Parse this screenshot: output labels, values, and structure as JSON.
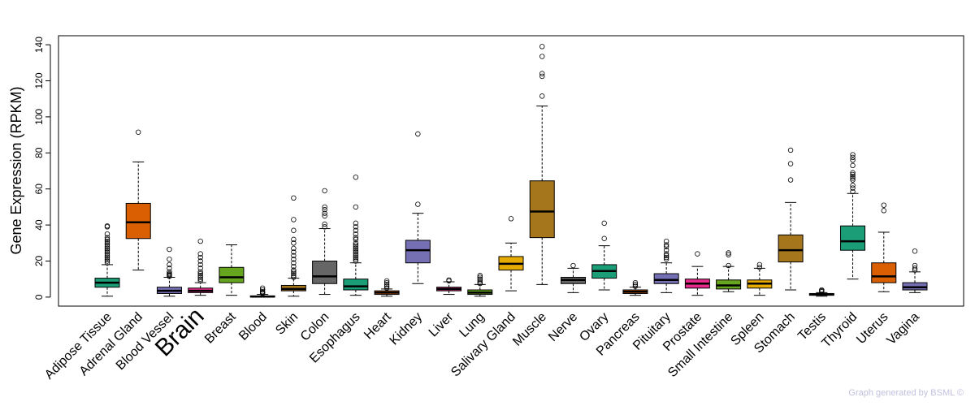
{
  "chart_data": {
    "type": "boxplot",
    "ylabel": "Gene Expression (RPKM)",
    "ylim": [
      -5,
      145
    ],
    "yticks": [
      0,
      20,
      40,
      60,
      80,
      100,
      120,
      140
    ],
    "highlight": {
      "category": "Brain",
      "color": "#FF0000"
    },
    "categories": [
      "Adipose Tissue",
      "Adrenal Gland",
      "Blood Vessel",
      "Brain",
      "Breast",
      "Blood",
      "Skin",
      "Colon",
      "Esophagus",
      "Heart",
      "Kidney",
      "Liver",
      "Lung",
      "Salivary Gland",
      "Muscle",
      "Nerve",
      "Ovary",
      "Pancreas",
      "Pituitary",
      "Prostate",
      "Small Intestine",
      "Spleen",
      "Stomach",
      "Testis",
      "Thyroid",
      "Uterus",
      "Vagina"
    ],
    "colors": [
      "#1B9E77",
      "#D95F02",
      "#7570B3",
      "#E7298A",
      "#66A61E",
      "#E6AB02",
      "#A6761D",
      "#666666",
      "#1B9E77",
      "#D95F02",
      "#7570B3",
      "#E7298A",
      "#66A61E",
      "#E6AB02",
      "#A6761D",
      "#666666",
      "#1B9E77",
      "#D95F02",
      "#7570B3",
      "#E7298A",
      "#66A61E",
      "#E6AB02",
      "#A6761D",
      "#666666",
      "#1B9E77",
      "#D95F02",
      "#7570B3"
    ],
    "boxes": [
      {
        "whisker_low": 0.5,
        "q1": 5.5,
        "median": 8,
        "q3": 10.5,
        "whisker_high": 18,
        "outliers": [
          19,
          20,
          21,
          22,
          23,
          24,
          25,
          26,
          27,
          28,
          29,
          30,
          31,
          32,
          33,
          35,
          39,
          39.5
        ]
      },
      {
        "whisker_low": 15,
        "q1": 32.5,
        "median": 41.5,
        "q3": 52,
        "whisker_high": 75,
        "outliers": [
          91.5
        ]
      },
      {
        "whisker_low": 0.5,
        "q1": 2,
        "median": 3.5,
        "q3": 5.5,
        "whisker_high": 11,
        "outliers": [
          11.5,
          12,
          12.5,
          13,
          14,
          16,
          18,
          21,
          26.5
        ]
      },
      {
        "whisker_low": 1,
        "q1": 2.5,
        "median": 3.5,
        "q3": 5,
        "whisker_high": 8,
        "outliers": [
          9,
          10,
          11,
          12,
          13,
          14,
          16,
          18,
          20,
          22,
          24,
          31
        ]
      },
      {
        "whisker_low": 1,
        "q1": 8,
        "median": 11,
        "q3": 16.5,
        "whisker_high": 29,
        "outliers": []
      },
      {
        "whisker_low": 0,
        "q1": 0.1,
        "median": 0.3,
        "q3": 0.7,
        "whisker_high": 1.5,
        "outliers": [
          2,
          2.5,
          3,
          4,
          5
        ]
      },
      {
        "whisker_low": 0.5,
        "q1": 3.5,
        "median": 4.5,
        "q3": 6.5,
        "whisker_high": 10.5,
        "outliers": [
          11,
          12,
          13,
          14,
          15,
          17,
          19,
          21,
          23,
          25,
          27,
          30,
          32,
          37,
          43,
          55
        ]
      },
      {
        "whisker_low": 1.5,
        "q1": 7.5,
        "median": 11.5,
        "q3": 20,
        "whisker_high": 38,
        "outliers": [
          39,
          40.5,
          45,
          46.5,
          48.5,
          50,
          59
        ]
      },
      {
        "whisker_low": 1,
        "q1": 4,
        "median": 6,
        "q3": 10,
        "whisker_high": 19,
        "outliers": [
          20,
          21,
          22,
          23,
          24,
          25,
          26,
          27,
          28,
          29,
          30,
          32,
          33,
          35,
          37,
          39,
          41,
          50,
          66.5
        ]
      },
      {
        "whisker_low": 0.5,
        "q1": 1.5,
        "median": 2.5,
        "q3": 3.5,
        "whisker_high": 4.5,
        "outliers": [
          5,
          6,
          7,
          8,
          9
        ]
      },
      {
        "whisker_low": 7.5,
        "q1": 19,
        "median": 26,
        "q3": 31.5,
        "whisker_high": 46.5,
        "outliers": [
          51.5,
          90.5
        ]
      },
      {
        "whisker_low": 1.5,
        "q1": 3.5,
        "median": 4.5,
        "q3": 5.5,
        "whisker_high": 8.5,
        "outliers": [
          9,
          9.5
        ]
      },
      {
        "whisker_low": 0.5,
        "q1": 1.5,
        "median": 2.5,
        "q3": 4,
        "whisker_high": 7,
        "outliers": [
          7.5,
          8,
          9,
          10,
          11,
          12
        ]
      },
      {
        "whisker_low": 3.5,
        "q1": 15,
        "median": 18.5,
        "q3": 22.5,
        "whisker_high": 30,
        "outliers": [
          43.5
        ]
      },
      {
        "whisker_low": 7,
        "q1": 33,
        "median": 47.5,
        "q3": 64.5,
        "whisker_high": 106,
        "outliers": [
          111.5,
          122.5,
          124,
          133.5,
          139
        ]
      },
      {
        "whisker_low": 2.5,
        "q1": 7.5,
        "median": 9.5,
        "q3": 11,
        "whisker_high": 16,
        "outliers": [
          17.5
        ]
      },
      {
        "whisker_low": 4,
        "q1": 10.5,
        "median": 14.5,
        "q3": 18,
        "whisker_high": 28.5,
        "outliers": [
          32.5,
          41
        ]
      },
      {
        "whisker_low": 1,
        "q1": 2,
        "median": 3,
        "q3": 4,
        "whisker_high": 5.5,
        "outliers": [
          6,
          7,
          8
        ]
      },
      {
        "whisker_low": 2.5,
        "q1": 7.5,
        "median": 9.5,
        "q3": 13,
        "whisker_high": 19,
        "outliers": [
          21,
          22,
          23,
          24,
          26,
          28,
          29,
          31
        ]
      },
      {
        "whisker_low": 1,
        "q1": 5,
        "median": 7.5,
        "q3": 10,
        "whisker_high": 17,
        "outliers": [
          24
        ]
      },
      {
        "whisker_low": 3,
        "q1": 4.5,
        "median": 6.5,
        "q3": 9.5,
        "whisker_high": 17,
        "outliers": [
          17.5,
          23.5,
          24.5
        ]
      },
      {
        "whisker_low": 1,
        "q1": 5,
        "median": 7.5,
        "q3": 9.5,
        "whisker_high": 16,
        "outliers": [
          16.5,
          18
        ]
      },
      {
        "whisker_low": 4,
        "q1": 19.5,
        "median": 26,
        "q3": 34.5,
        "whisker_high": 52.5,
        "outliers": [
          65,
          74,
          81.5
        ]
      },
      {
        "whisker_low": 0.5,
        "q1": 1,
        "median": 1.5,
        "q3": 2,
        "whisker_high": 2.5,
        "outliers": [
          3,
          3.5,
          4
        ]
      },
      {
        "whisker_low": 10,
        "q1": 26,
        "median": 31,
        "q3": 39.5,
        "whisker_high": 57.5,
        "outliers": [
          58.5,
          60.5,
          62,
          65,
          66,
          67,
          68,
          69,
          73,
          76,
          77.5,
          79
        ]
      },
      {
        "whisker_low": 3,
        "q1": 8,
        "median": 11.5,
        "q3": 19,
        "whisker_high": 36,
        "outliers": [
          48,
          51
        ]
      },
      {
        "whisker_low": 2.5,
        "q1": 4,
        "median": 5.5,
        "q3": 8,
        "whisker_high": 14,
        "outliers": [
          15,
          16,
          17.5,
          25.5
        ]
      }
    ]
  },
  "credit": "Graph generated by BSML ©"
}
